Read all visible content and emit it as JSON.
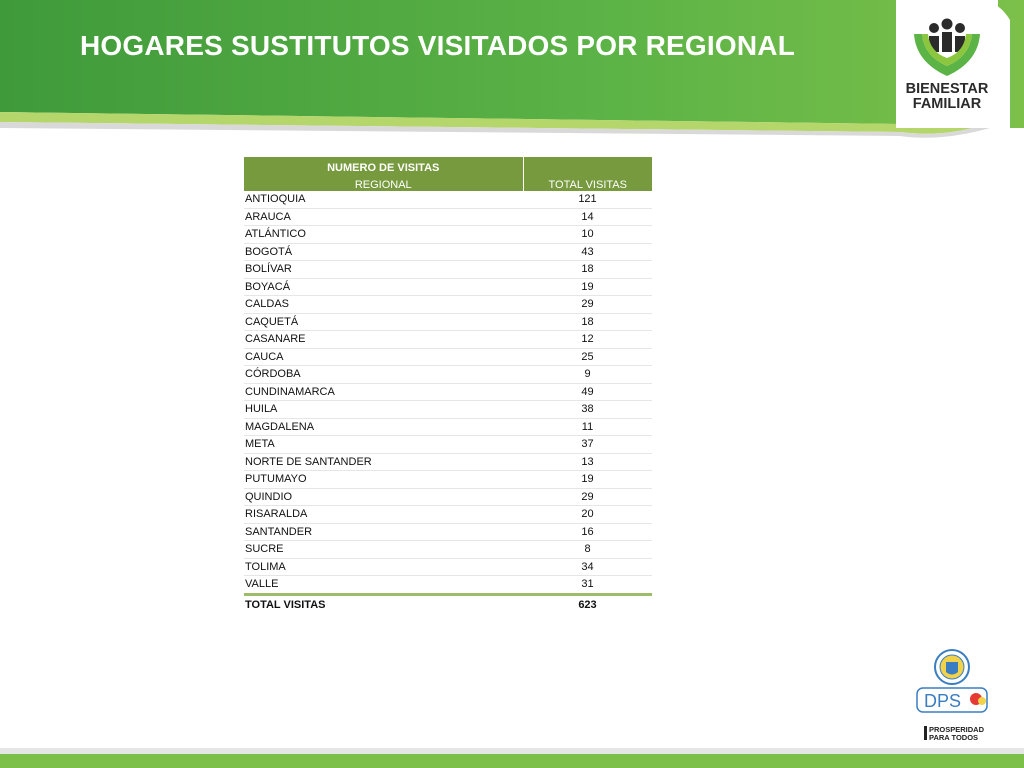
{
  "title": "HOGARES SUSTITUTOS VISITADOS POR REGIONAL",
  "logo": {
    "line1": "BIENESTAR",
    "line2": "FAMILIAR"
  },
  "table": {
    "header_top": "NUMERO DE VISITAS",
    "col_regional": "REGIONAL",
    "col_total": "TOTAL VISITAS",
    "rows": [
      {
        "regional": "ANTIOQUIA",
        "total": "121"
      },
      {
        "regional": "ARAUCA",
        "total": "14"
      },
      {
        "regional": "ATLÁNTICO",
        "total": "10"
      },
      {
        "regional": "BOGOTÁ",
        "total": "43"
      },
      {
        "regional": "BOLÍVAR",
        "total": "18"
      },
      {
        "regional": "BOYACÁ",
        "total": "19"
      },
      {
        "regional": "CALDAS",
        "total": "29"
      },
      {
        "regional": "CAQUETÁ",
        "total": "18"
      },
      {
        "regional": "CASANARE",
        "total": "12"
      },
      {
        "regional": "CAUCA",
        "total": "25"
      },
      {
        "regional": "CÓRDOBA",
        "total": "9"
      },
      {
        "regional": "CUNDINAMARCA",
        "total": "49"
      },
      {
        "regional": "HUILA",
        "total": "38"
      },
      {
        "regional": "MAGDALENA",
        "total": "11"
      },
      {
        "regional": "META",
        "total": "37"
      },
      {
        "regional": "NORTE DE SANTANDER",
        "total": "13"
      },
      {
        "regional": "PUTUMAYO",
        "total": "19"
      },
      {
        "regional": "QUINDIO",
        "total": "29"
      },
      {
        "regional": "RISARALDA",
        "total": "20"
      },
      {
        "regional": "SANTANDER",
        "total": "16"
      },
      {
        "regional": "SUCRE",
        "total": "8"
      },
      {
        "regional": "TOLIMA",
        "total": "34"
      },
      {
        "regional": "VALLE",
        "total": "31"
      }
    ],
    "total_label": "TOTAL VISITAS",
    "total_value": "623"
  },
  "footer_logos": {
    "dps": "DPS",
    "prosperidad_line1": "PROSPERIDAD",
    "prosperidad_line2": "PARA TODOS"
  },
  "colors": {
    "banner_dark": "#3f9a3a",
    "banner_light": "#8cc63f",
    "header_cell": "#779a3f",
    "total_rule": "#9ebd6a"
  }
}
